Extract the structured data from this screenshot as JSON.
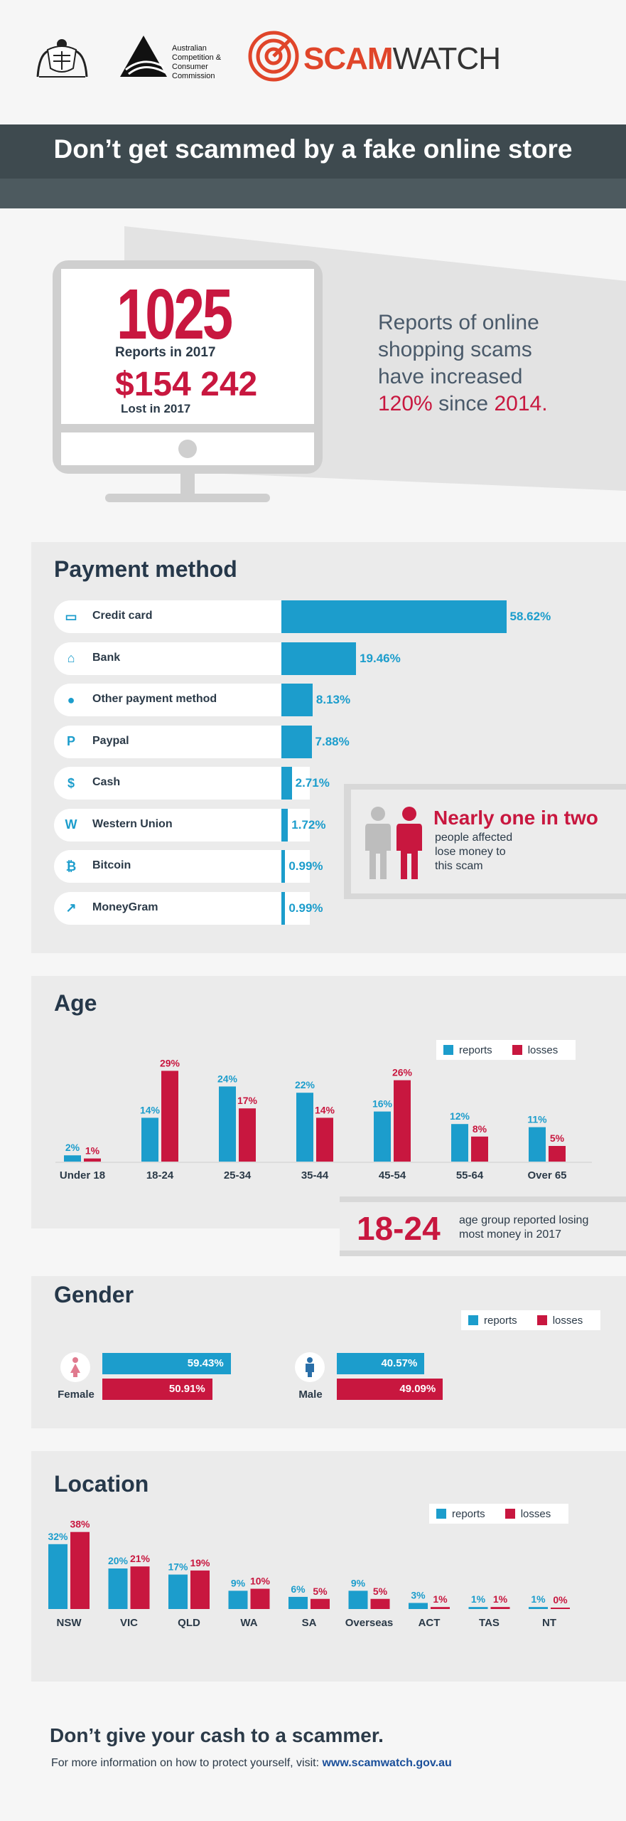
{
  "header": {
    "accc_name_lines": [
      "Australian",
      "Competition &",
      "Consumer",
      "Commission"
    ],
    "scamwatch_scam": "SCAM",
    "scamwatch_watch": "WATCH"
  },
  "title": "Don’t get scammed by a fake online store",
  "stats": {
    "reports_number": "1025",
    "reports_label": "Reports in 2017",
    "lost_amount": "$154 242",
    "lost_label": "Lost in 2017",
    "increase_lines": [
      "Reports of online",
      "shopping scams",
      "have increased"
    ],
    "increase_pct": "120%",
    "increase_mid": " since ",
    "increase_year": "2014."
  },
  "callouts": {
    "nearly_title": "Nearly one in two",
    "nearly_lines": [
      "people affected",
      "lose money to",
      "this scam"
    ],
    "age_highlight": "18-24",
    "age_highlight_lines": [
      "age group reported losing",
      "most money in 2017"
    ]
  },
  "colors": {
    "reports": "#1c9dcc",
    "losses": "#c8173f",
    "title_band": "#3e4a4f"
  },
  "chart_data": [
    {
      "type": "bar",
      "title": "Payment method",
      "orientation": "horizontal",
      "categories": [
        "Credit card",
        "Bank",
        "Other payment method",
        "Paypal",
        "Cash",
        "Western Union",
        "Bitcoin",
        "MoneyGram"
      ],
      "icons": [
        "credit-card-icon",
        "bank-icon",
        "piggy-bank-icon",
        "paypal-icon",
        "cash-icon",
        "western-union-icon",
        "bitcoin-icon",
        "moneygram-icon"
      ],
      "values": [
        58.62,
        19.46,
        8.13,
        7.88,
        2.71,
        1.72,
        0.99,
        0.99
      ],
      "value_labels": [
        "58.62%",
        "19.46%",
        "8.13%",
        "7.88%",
        "2.71%",
        "1.72%",
        "0.99%",
        "0.99%"
      ]
    },
    {
      "type": "bar",
      "title": "Age",
      "categories": [
        "Under 18",
        "18-24",
        "25-34",
        "35-44",
        "45-54",
        "55-64",
        "Over 65"
      ],
      "series": [
        {
          "name": "reports",
          "values": [
            2,
            14,
            24,
            22,
            16,
            12,
            11
          ],
          "labels": [
            "2%",
            "14%",
            "24%",
            "22%",
            "16%",
            "12%",
            "11%"
          ]
        },
        {
          "name": "losses",
          "values": [
            1,
            29,
            17,
            14,
            26,
            8,
            5
          ],
          "labels": [
            "1%",
            "29%",
            "17%",
            "14%",
            "26%",
            "8%",
            "5%"
          ]
        }
      ],
      "legend": "top-right"
    },
    {
      "type": "bar",
      "title": "Gender",
      "orientation": "horizontal",
      "categories": [
        "Female",
        "Male"
      ],
      "series": [
        {
          "name": "reports",
          "values": [
            59.43,
            40.57
          ],
          "labels": [
            "59.43%",
            "40.57%"
          ]
        },
        {
          "name": "losses",
          "values": [
            50.91,
            49.09
          ],
          "labels": [
            "50.91%",
            "49.09%"
          ]
        }
      ],
      "legend": "top-right"
    },
    {
      "type": "bar",
      "title": "Location",
      "categories": [
        "NSW",
        "VIC",
        "QLD",
        "WA",
        "SA",
        "Overseas",
        "ACT",
        "TAS",
        "NT"
      ],
      "series": [
        {
          "name": "reports",
          "values": [
            32,
            20,
            17,
            9,
            6,
            9,
            3,
            1,
            1
          ],
          "labels": [
            "32%",
            "20%",
            "17%",
            "9%",
            "6%",
            "9%",
            "3%",
            "1%",
            "1%"
          ]
        },
        {
          "name": "losses",
          "values": [
            38,
            21,
            19,
            10,
            5,
            5,
            1,
            1,
            0
          ],
          "labels": [
            "38%",
            "21%",
            "19%",
            "10%",
            "5%",
            "5%",
            "1%",
            "1%",
            "0%"
          ]
        }
      ],
      "legend": "top-right"
    }
  ],
  "footer": {
    "title": "Don’t give your cash to a scammer.",
    "text": "For more information on how to protect yourself, visit: ",
    "link": "www.scamwatch.gov.au"
  }
}
